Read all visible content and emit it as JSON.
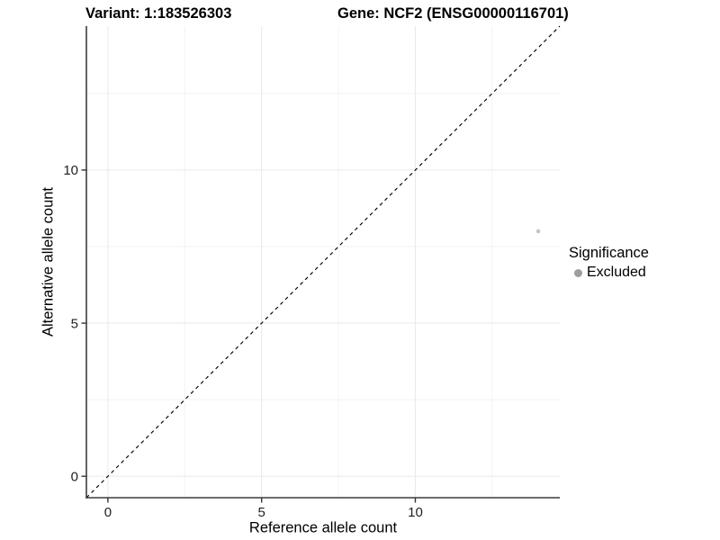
{
  "titles": {
    "variant": "Variant: 1:183526303",
    "gene": "Gene: NCF2 (ENSG00000116701)"
  },
  "chart_data": {
    "type": "scatter",
    "title": "Variant: 1:183526303   Gene: NCF2 (ENSG00000116701)",
    "xlabel": "Reference allele count",
    "ylabel": "Alternative allele count",
    "xlim": [
      -0.7,
      14.7
    ],
    "ylim": [
      -0.7,
      14.7
    ],
    "x_major_ticks": [
      0,
      5,
      10
    ],
    "y_major_ticks": [
      0,
      5,
      10
    ],
    "x_minor_ticks": [
      2.5,
      7.5,
      12.5
    ],
    "y_minor_ticks": [
      2.5,
      7.5,
      12.5
    ],
    "grid": "major and minor, very light gray",
    "points": [
      {
        "x": 14,
        "y": 8,
        "series": "Excluded"
      }
    ],
    "reference_line": {
      "type": "identity y=x",
      "style": "dashed",
      "color": "#000000"
    },
    "legend": {
      "title": "Significance",
      "position": "right",
      "items": [
        {
          "label": "Excluded",
          "color": "#9e9e9e"
        }
      ]
    },
    "colors": {
      "point": "#c5c5c5",
      "grid_major": "#e9e9e9",
      "grid_minor": "#f3f3f3",
      "axis_line": "#3c3c3c",
      "tick_mark": "#333333",
      "tick_label": "#1f1f1f"
    }
  }
}
